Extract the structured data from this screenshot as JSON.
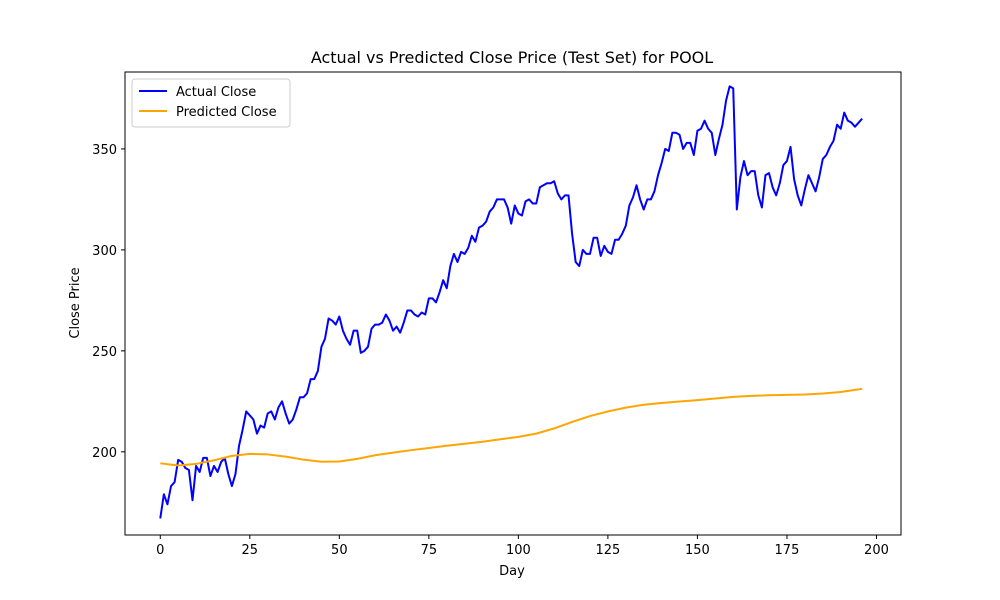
{
  "chart_data": {
    "type": "line",
    "title": "Actual vs Predicted Close Price (Test Set) for POOL",
    "xlabel": "Day",
    "ylabel": "Close Price",
    "xlim": [
      -9.85,
      206.85
    ],
    "ylim": [
      158.8,
      388.1
    ],
    "xticks": [
      0,
      25,
      50,
      75,
      100,
      125,
      150,
      175,
      200
    ],
    "yticks": [
      200,
      250,
      300,
      350
    ],
    "grid": false,
    "legend_position": "top-left",
    "series": [
      {
        "name": "Actual Close",
        "color": "#0000ff",
        "x": [
          0,
          1,
          2,
          3,
          4,
          5,
          6,
          7,
          8,
          9,
          10,
          11,
          12,
          13,
          14,
          15,
          16,
          17,
          18,
          19,
          20,
          21,
          22,
          23,
          24,
          25,
          26,
          27,
          28,
          29,
          30,
          31,
          32,
          33,
          34,
          35,
          36,
          37,
          38,
          39,
          40,
          41,
          42,
          43,
          44,
          45,
          46,
          47,
          48,
          49,
          50,
          51,
          52,
          53,
          54,
          55,
          56,
          57,
          58,
          59,
          60,
          61,
          62,
          63,
          64,
          65,
          66,
          67,
          68,
          69,
          70,
          71,
          72,
          73,
          74,
          75,
          76,
          77,
          78,
          79,
          80,
          81,
          82,
          83,
          84,
          85,
          86,
          87,
          88,
          89,
          90,
          91,
          92,
          93,
          94,
          95,
          96,
          97,
          98,
          99,
          100,
          101,
          102,
          103,
          104,
          105,
          106,
          107,
          108,
          109,
          110,
          111,
          112,
          113,
          114,
          115,
          116,
          117,
          118,
          119,
          120,
          121,
          122,
          123,
          124,
          125,
          126,
          127,
          128,
          129,
          130,
          131,
          132,
          133,
          134,
          135,
          136,
          137,
          138,
          139,
          140,
          141,
          142,
          143,
          144,
          145,
          146,
          147,
          148,
          149,
          150,
          151,
          152,
          153,
          154,
          155,
          156,
          157,
          158,
          159,
          160,
          161,
          162,
          163,
          164,
          165,
          166,
          167,
          168,
          169,
          170,
          171,
          172,
          173,
          174,
          175,
          176,
          177,
          178,
          179,
          180,
          181,
          182,
          183,
          184,
          185,
          186,
          187,
          188,
          189,
          190,
          191,
          192,
          193,
          194,
          195,
          196
        ],
        "values": [
          167,
          179,
          174,
          183,
          185,
          196,
          195,
          192,
          191,
          176,
          193,
          190,
          197,
          197,
          188,
          193,
          190,
          195,
          197,
          189,
          183,
          189,
          203,
          211,
          220,
          218,
          216,
          209,
          213,
          212,
          219,
          220,
          216,
          222,
          225,
          219,
          214,
          216,
          221,
          227,
          227,
          229,
          236,
          236,
          240,
          252,
          256,
          266,
          265,
          263,
          267,
          260,
          256,
          253,
          260,
          260,
          249,
          250,
          252,
          261,
          263,
          263,
          264,
          268,
          265,
          260,
          262,
          259,
          264,
          270,
          270,
          268,
          267,
          269,
          268,
          276,
          276,
          274,
          279,
          285,
          281,
          292,
          298,
          294,
          299,
          298,
          301,
          307,
          304,
          311,
          312,
          314,
          319,
          321,
          325,
          325,
          325,
          321,
          313,
          322,
          318,
          317,
          324,
          325,
          323,
          323,
          331,
          332,
          333,
          333,
          334,
          328,
          325,
          327,
          327,
          308,
          294,
          292,
          300,
          298,
          298,
          306,
          306,
          297,
          302,
          299,
          298,
          305,
          305,
          308,
          312,
          322,
          326,
          332,
          325,
          320,
          325,
          325,
          329,
          337,
          343,
          350,
          349,
          358,
          358,
          357,
          350,
          353,
          353,
          347,
          359,
          360,
          364,
          360,
          358,
          347,
          355,
          362,
          374,
          381,
          380,
          320,
          336,
          344,
          337,
          339,
          339,
          327,
          321,
          337,
          338,
          331,
          327,
          333,
          342,
          344,
          351,
          335,
          327,
          322,
          330,
          337,
          333,
          329,
          336,
          345,
          347,
          351,
          354,
          362,
          360,
          368,
          364,
          363,
          361,
          363,
          365
        ]
      },
      {
        "name": "Predicted Close",
        "color": "#ffa500",
        "x": [
          0,
          5,
          10,
          15,
          20,
          25,
          30,
          35,
          40,
          45,
          50,
          55,
          60,
          65,
          70,
          75,
          80,
          85,
          90,
          95,
          100,
          105,
          110,
          115,
          120,
          125,
          130,
          135,
          140,
          145,
          150,
          155,
          160,
          165,
          170,
          175,
          180,
          185,
          190,
          196
        ],
        "values": [
          194.3,
          193.2,
          194.0,
          195.8,
          198.0,
          199.0,
          198.7,
          197.6,
          196.1,
          195.1,
          195.2,
          196.5,
          198.3,
          199.6,
          200.8,
          201.9,
          203.0,
          204.0,
          205.0,
          206.2,
          207.4,
          209.0,
          211.6,
          214.8,
          217.7,
          220.0,
          221.9,
          223.3,
          224.2,
          224.9,
          225.6,
          226.4,
          227.2,
          227.7,
          228.0,
          228.2,
          228.4,
          228.9,
          229.6,
          231.2
        ]
      }
    ]
  }
}
